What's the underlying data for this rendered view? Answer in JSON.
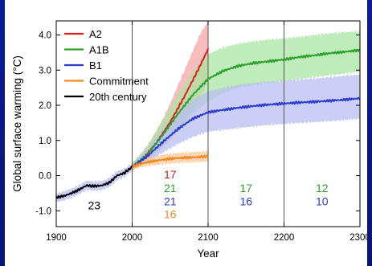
{
  "chart_data": {
    "type": "line",
    "xlabel": "Year",
    "ylabel": "Global surface warming (°C)",
    "xlim": [
      1900,
      2300
    ],
    "ylim": [
      -1.45,
      4.4
    ],
    "x_ticks": [
      1900,
      2000,
      2100,
      2200,
      2300
    ],
    "y_ticks": [
      -1.0,
      0.0,
      1.0,
      2.0,
      3.0,
      4.0
    ],
    "x_tick_labels": [
      "1900",
      "2000",
      "2100",
      "2200",
      "2300"
    ],
    "y_tick_labels": [
      "-1.0",
      "0.0",
      "1.0",
      "2.0",
      "3.0",
      "4.0"
    ],
    "vertical_lines": [
      2000,
      2100,
      2200
    ],
    "legend_position": "top-left",
    "series": [
      {
        "name": "A2",
        "color": "#e31a1c",
        "band_color": "#f4a6a6",
        "x": [
          2000,
          2010,
          2020,
          2030,
          2040,
          2050,
          2060,
          2070,
          2080,
          2090,
          2100
        ],
        "y": [
          0.25,
          0.4,
          0.62,
          0.88,
          1.18,
          1.52,
          1.9,
          2.3,
          2.72,
          3.15,
          3.6
        ],
        "upper": [
          0.35,
          0.55,
          0.85,
          1.2,
          1.6,
          2.05,
          2.55,
          3.05,
          3.55,
          4.05,
          4.4
        ],
        "lower": [
          0.15,
          0.28,
          0.42,
          0.6,
          0.8,
          1.02,
          1.28,
          1.58,
          1.9,
          2.25,
          2.65
        ]
      },
      {
        "name": "A1B",
        "color": "#2ca02c",
        "band_color": "#a9e6a3",
        "x": [
          2000,
          2020,
          2040,
          2060,
          2080,
          2100,
          2120,
          2140,
          2160,
          2180,
          2200,
          2220,
          2240,
          2260,
          2280,
          2300
        ],
        "y": [
          0.25,
          0.6,
          1.15,
          1.75,
          2.3,
          2.75,
          2.98,
          3.12,
          3.2,
          3.25,
          3.3,
          3.37,
          3.42,
          3.48,
          3.52,
          3.57
        ],
        "upper": [
          0.35,
          0.85,
          1.55,
          2.3,
          2.95,
          3.45,
          3.65,
          3.75,
          3.82,
          3.87,
          3.9,
          3.95,
          4.0,
          4.05,
          4.08,
          4.1
        ],
        "lower": [
          0.15,
          0.4,
          0.82,
          1.28,
          1.75,
          2.1,
          2.35,
          2.5,
          2.58,
          2.63,
          2.68,
          2.74,
          2.8,
          2.85,
          2.9,
          2.95
        ]
      },
      {
        "name": "B1",
        "color": "#2b3bcc",
        "band_color": "#b9bef2",
        "x": [
          2000,
          2020,
          2040,
          2060,
          2080,
          2100,
          2120,
          2140,
          2160,
          2180,
          2200,
          2220,
          2240,
          2260,
          2280,
          2300
        ],
        "y": [
          0.25,
          0.55,
          0.95,
          1.32,
          1.62,
          1.8,
          1.87,
          1.93,
          1.98,
          2.02,
          2.05,
          2.08,
          2.1,
          2.13,
          2.16,
          2.2
        ],
        "upper": [
          0.35,
          0.75,
          1.3,
          1.8,
          2.15,
          2.4,
          2.5,
          2.58,
          2.63,
          2.67,
          2.7,
          2.73,
          2.76,
          2.8,
          2.84,
          2.88
        ],
        "lower": [
          0.15,
          0.38,
          0.65,
          0.9,
          1.1,
          1.25,
          1.3,
          1.35,
          1.4,
          1.44,
          1.47,
          1.5,
          1.52,
          1.55,
          1.58,
          1.62
        ]
      },
      {
        "name": "Commitment",
        "color": "#f08a24",
        "band_color": "#f9c895",
        "x": [
          2000,
          2010,
          2020,
          2030,
          2040,
          2050,
          2060,
          2070,
          2080,
          2090,
          2100
        ],
        "y": [
          0.25,
          0.33,
          0.38,
          0.42,
          0.45,
          0.48,
          0.5,
          0.51,
          0.52,
          0.53,
          0.55
        ],
        "upper": [
          0.33,
          0.43,
          0.5,
          0.55,
          0.59,
          0.62,
          0.64,
          0.66,
          0.67,
          0.68,
          0.7
        ],
        "lower": [
          0.17,
          0.23,
          0.27,
          0.3,
          0.32,
          0.34,
          0.36,
          0.37,
          0.38,
          0.39,
          0.4
        ]
      },
      {
        "name": "20th century",
        "color": "#000000",
        "band_color": "#b9bef2",
        "x": [
          1900,
          1910,
          1920,
          1930,
          1940,
          1950,
          1960,
          1970,
          1980,
          1990,
          2000
        ],
        "y": [
          -0.62,
          -0.58,
          -0.5,
          -0.4,
          -0.28,
          -0.3,
          -0.28,
          -0.2,
          0.0,
          0.08,
          0.25
        ],
        "upper": [
          -0.5,
          -0.45,
          -0.37,
          -0.27,
          -0.15,
          -0.17,
          -0.15,
          -0.07,
          0.13,
          0.2,
          0.35
        ],
        "lower": [
          -0.75,
          -0.71,
          -0.63,
          -0.53,
          -0.41,
          -0.43,
          -0.41,
          -0.33,
          -0.13,
          -0.04,
          0.15
        ]
      }
    ],
    "model_counts": [
      {
        "label": "23",
        "color": "#000000",
        "x": 1950,
        "y": -0.85
      },
      {
        "label": "17",
        "color": "#c81e1e",
        "x": 2050,
        "y": 0.03
      },
      {
        "label": "21",
        "color": "#2ca02c",
        "x": 2050,
        "y": -0.35
      },
      {
        "label": "21",
        "color": "#2b3bcc",
        "x": 2050,
        "y": -0.73
      },
      {
        "label": "16",
        "color": "#f08a24",
        "x": 2050,
        "y": -1.1
      },
      {
        "label": "17",
        "color": "#2ca02c",
        "x": 2150,
        "y": -0.35
      },
      {
        "label": "16",
        "color": "#2b3bcc",
        "x": 2150,
        "y": -0.73
      },
      {
        "label": "12",
        "color": "#2ca02c",
        "x": 2250,
        "y": -0.35
      },
      {
        "label": "10",
        "color": "#2b3bcc",
        "x": 2250,
        "y": -0.73
      }
    ]
  }
}
